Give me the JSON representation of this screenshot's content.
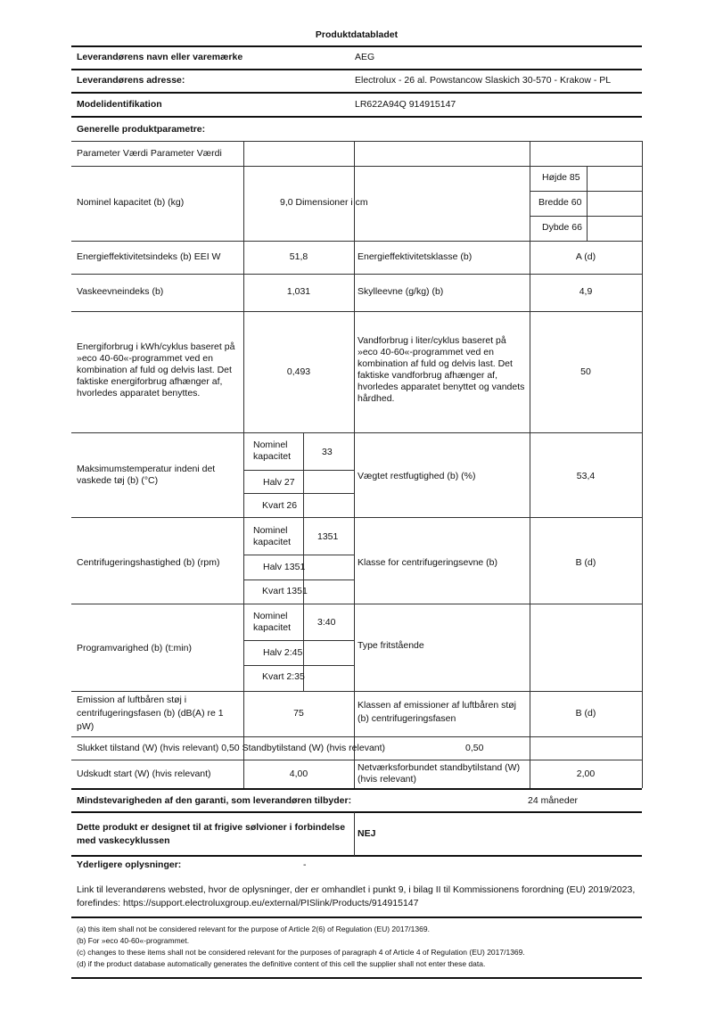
{
  "title": "Produktdatabladet",
  "supplier": {
    "name_label": "Leverandørens navn eller varemærke",
    "name": "AEG",
    "address_label": "Leverandørens adresse:",
    "address": "Electrolux - 26 al. Powstancow Slaskich 30-570 - Krakow - PL",
    "model_label": "Modelidentifikation",
    "model": "LR622A94Q 914915147"
  },
  "general_label": "Generelle produktparametre:",
  "table": {
    "header": "Parameter Værdi Parameter Værdi",
    "capacity_label": "Nominel kapacitet (b) (kg)",
    "capacity_value": "9,0 Dimensioner i cm",
    "height": "Højde 85",
    "width": "Bredde 60",
    "depth": "Dybde 66",
    "eei_label": "Energieffektivitetsindeks (b) EEI W",
    "eei_value": "51,8",
    "energy_class_label": "Energieffektivitetsklasse (b)",
    "energy_class": "A (d)",
    "wash_label": "Vaskeevneindeks (b)",
    "wash_value": "1,031",
    "rinse_label": "Skylleevne (g/kg) (b)",
    "rinse_value": "4,9",
    "energy_label": "Energiforbrug i kWh/cyklus baseret på »eco 40-60«-programmet ved en kombination af fuld og delvis last. Det faktiske energiforbrug afhænger af, hvorledes apparatet benyttes.",
    "energy_value": "0,493",
    "water_label": "Vandforbrug i liter/cyklus baseret på »eco 40-60«-programmet ved en kombination af fuld og delvis last. Det faktiske vandforbrug afhænger af, hvorledes apparatet benyttet og vandets hårdhed.",
    "water_value": "50",
    "temp_label": "Maksimumstemperatur indeni det vaskede tøj (b) (°C)",
    "temp_nominal_label": "Nominel kapacitet",
    "temp_nominal": "33",
    "temp_half": "Halv 27",
    "temp_quarter": "Kvart 26",
    "moisture_label": "Vægtet restfugtighed (b) (%)",
    "moisture_value": "53,4",
    "spin_label": "Centrifugeringshastighed (b) (rpm)",
    "spin_nominal_label": "Nominel kapacitet",
    "spin_nominal": "1351",
    "spin_half": "Halv 1351",
    "spin_quarter": "Kvart 1351",
    "spin_class_label": "Klasse for centrifugeringsevne (b)",
    "spin_class": "B (d)",
    "duration_label": "Programvarighed (b) (t:min)",
    "duration_nominal_label": "Nominel kapacitet",
    "duration_nominal": "3:40",
    "duration_half": "Halv 2:45",
    "duration_quarter": "Kvart 2:35",
    "type_label": "Type fritstående",
    "noise_label": "Emission af luftbåren støj i centrifugeringsfasen (b) (dB(A) re 1 pW)",
    "noise_value": "75",
    "noise_class_label": "Klassen af emissioner af luftbåren støj (b) centrifugeringsfasen",
    "noise_class": "B (d)",
    "off_label": "Slukket tilstand (W) (hvis relevant) 0,50 Standbytilstand (W) (hvis relevant)",
    "standby_value": "0,50",
    "delay_label": "Udskudt start (W) (hvis relevant)",
    "delay_value": "4,00",
    "network_label": "Netværksforbundet standbytilstand (W) (hvis relevant)",
    "network_value": "2,00"
  },
  "warranty_label": "Mindstevarigheden af den garanti, som leverandøren tilbyder:",
  "warranty_value": "24 måneder",
  "silver_label": "Dette produkt er designet til at frigive sølvioner i forbindelse med vaskecyklussen",
  "silver_value": "NEJ",
  "additional_label": "Yderligere oplysninger:",
  "additional_value": "-",
  "link_text": "Link til leverandørens websted, hvor de oplysninger, der er omhandlet i punkt 9, i bilag II til Kommissionens forordning (EU) 2019/2023, forefindes: https://support.electroluxgroup.eu/external/PISlink/Products/914915147",
  "footnotes": [
    "(a) this item shall not be considered relevant for the purpose of Article 2(6) of Regulation (EU) 2017/1369.",
    "(b) For »eco 40-60«-programmet.",
    "(c) changes to these items shall not be considered relevant for the purposes of paragraph 4 of Article 4 of Regulation (EU) 2017/1369.",
    "(d) if the product database automatically generates the definitive content of this cell the supplier shall not enter these data."
  ]
}
